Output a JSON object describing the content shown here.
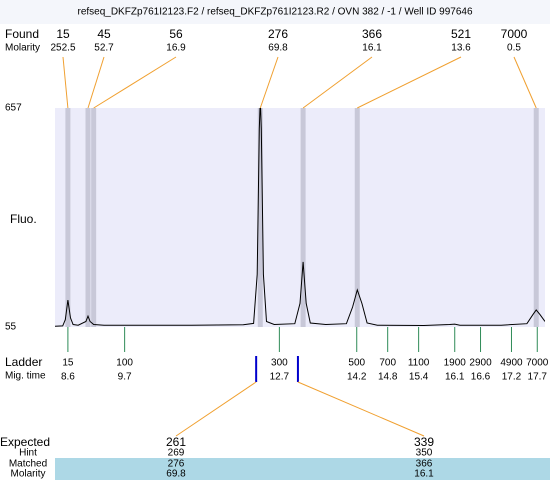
{
  "chart_data": {
    "type": "line",
    "title": "refseq_DKFZp761I2123.F2 / refseq_DKFZp761I2123.R2 / OVN 382 / -1 / Well ID 997646",
    "y_label": "Fluo.",
    "ylim": [
      55,
      657
    ],
    "yticks": [
      55,
      657
    ],
    "xlim": [
      8.35,
      17.85
    ],
    "trace": {
      "x": [
        8.35,
        8.5,
        8.55,
        8.6,
        8.65,
        8.7,
        8.8,
        8.95,
        8.99,
        9.03,
        9.1,
        9.3,
        10,
        11,
        12,
        12.2,
        12.27,
        12.31,
        12.33,
        12.35,
        12.39,
        12.45,
        12.6,
        13.0,
        13.1,
        13.16,
        13.22,
        13.3,
        13.6,
        14.0,
        14.12,
        14.21,
        14.3,
        14.4,
        14.6,
        15.5,
        16.0,
        16.1,
        16.2,
        17.0,
        17.5,
        17.62,
        17.68,
        17.75,
        17.85
      ],
      "values": [
        57,
        58,
        75,
        129,
        80,
        62,
        60,
        70,
        85,
        70,
        62,
        60,
        60,
        60,
        61,
        65,
        200,
        600,
        680,
        600,
        200,
        70,
        62,
        64,
        120,
        234,
        120,
        66,
        62,
        64,
        110,
        157,
        120,
        66,
        60,
        59,
        62,
        63,
        60,
        60,
        64,
        90,
        102,
        90,
        70
      ]
    },
    "found": {
      "label": "Found",
      "molarity_label": "Molarity",
      "sizes": [
        15,
        45,
        56,
        276,
        366,
        521,
        7000
      ],
      "molarity": [
        252.5,
        52.7,
        16.9,
        69.8,
        16.1,
        13.6,
        0.5
      ],
      "times": [
        8.6,
        8.99,
        9.1,
        12.33,
        13.16,
        14.21,
        17.68
      ]
    },
    "ladder": {
      "label": "Ladder",
      "time_label": "Mig. time",
      "sizes": [
        15,
        100,
        300,
        500,
        700,
        1100,
        1900,
        2900,
        4900,
        7000
      ],
      "times": [
        8.6,
        9.7,
        12.7,
        14.2,
        14.8,
        15.4,
        16.1,
        16.6,
        17.2,
        17.7
      ]
    },
    "expected": {
      "label": "Expected",
      "hint_label": "Hint",
      "matched_label": "Matched",
      "molarity_label": "Molarity",
      "items": [
        {
          "size": 261,
          "hint": 269,
          "matched": 276,
          "molarity": 69.8,
          "time": 12.25
        },
        {
          "size": 339,
          "hint": 350,
          "matched": 366,
          "molarity": 16.1,
          "time": 13.06
        }
      ]
    }
  }
}
